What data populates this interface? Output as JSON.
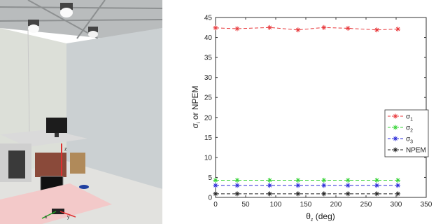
{
  "photo": {
    "description_icon": "lab-room-photo",
    "axis_labels": [
      "x",
      "y",
      "z"
    ]
  },
  "chart_data": {
    "type": "line",
    "xlabel_main": "θ",
    "xlabel_sub": "z",
    "xlabel_unit": " (deg)",
    "ylabel_main": "σ",
    "ylabel_sub": "i",
    "ylabel_rest": " or NPEM",
    "xlim": [
      0,
      350
    ],
    "ylim": [
      0,
      45
    ],
    "xticks": [
      0,
      50,
      100,
      150,
      200,
      250,
      300,
      350
    ],
    "yticks": [
      0,
      5,
      10,
      15,
      20,
      25,
      30,
      35,
      40,
      45
    ],
    "x": [
      0,
      36,
      90,
      137,
      180,
      220,
      268,
      303
    ],
    "legend_position": "center-right",
    "series": [
      {
        "name": "σ",
        "sub": "1",
        "color": "#e8393c",
        "values": [
          42.4,
          42.2,
          42.5,
          41.9,
          42.5,
          42.3,
          41.9,
          42.1
        ]
      },
      {
        "name": "σ",
        "sub": "2",
        "color": "#37d437",
        "values": [
          4.3,
          4.3,
          4.3,
          4.3,
          4.3,
          4.3,
          4.3,
          4.3
        ]
      },
      {
        "name": "σ",
        "sub": "3",
        "color": "#2a2ad8",
        "values": [
          3.0,
          3.0,
          3.0,
          3.0,
          3.0,
          3.0,
          3.0,
          3.0
        ]
      },
      {
        "name": "NPEM",
        "sub": "",
        "color": "#222222",
        "values": [
          0.9,
          0.9,
          0.9,
          0.9,
          0.9,
          0.9,
          0.9,
          0.9
        ]
      }
    ]
  }
}
